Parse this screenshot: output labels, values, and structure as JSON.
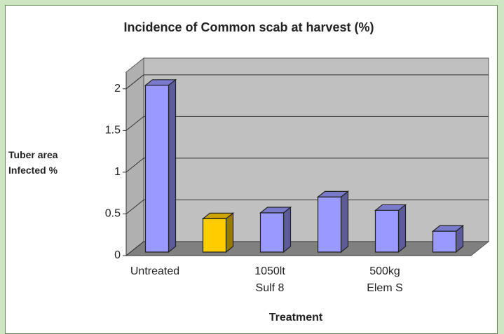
{
  "chart_data": {
    "type": "bar3d",
    "title": "Incidence of Common scab at harvest (%)",
    "x_label": "Treatment",
    "y_label": "Tuber area\nInfected %",
    "categories": [
      "Untreated",
      null,
      "1050lt\nSulf 8",
      null,
      "500kg\nElem S",
      null
    ],
    "values": [
      2.0,
      0.4,
      0.47,
      0.66,
      0.5,
      0.25
    ],
    "colors": [
      "#9999ff",
      "#ffcc00",
      "#9999ff",
      "#9999ff",
      "#9999ff",
      "#9999ff"
    ],
    "ylim": [
      0,
      2.2
    ],
    "yticks": [
      0,
      0.5,
      1,
      1.5,
      2
    ],
    "grid": true
  }
}
